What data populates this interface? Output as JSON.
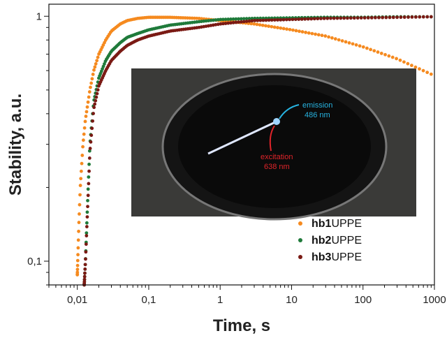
{
  "chart_data": {
    "type": "scatter",
    "xlabel": "Time, s",
    "ylabel": "Stability, a.u.",
    "xscale": "log",
    "yscale": "log",
    "xlim": [
      0.004,
      1000
    ],
    "ylim": [
      0.08,
      1.12
    ],
    "x_ticks": [
      {
        "value": 0.01,
        "label": "0,01"
      },
      {
        "value": 0.1,
        "label": "0,1"
      },
      {
        "value": 1,
        "label": "1"
      },
      {
        "value": 10,
        "label": "10"
      },
      {
        "value": 100,
        "label": "100"
      },
      {
        "value": 1000,
        "label": "1000"
      }
    ],
    "y_ticks": [
      {
        "value": 0.1,
        "label": "0,1"
      },
      {
        "value": 1,
        "label": "1"
      }
    ],
    "legend_position": "bottom-right",
    "series": [
      {
        "name": "hb1UPPE",
        "name_bold": "hb1",
        "name_rest": "UPPE",
        "color": "#f58a1f",
        "x": [
          0.01,
          0.0105,
          0.011,
          0.012,
          0.013,
          0.015,
          0.017,
          0.02,
          0.025,
          0.03,
          0.04,
          0.05,
          0.07,
          0.1,
          0.2,
          0.5,
          1,
          3,
          10,
          30,
          100,
          300,
          900
        ],
        "y": [
          0.088,
          0.14,
          0.2,
          0.3,
          0.38,
          0.5,
          0.6,
          0.7,
          0.8,
          0.87,
          0.93,
          0.96,
          0.98,
          0.99,
          0.99,
          0.98,
          0.96,
          0.93,
          0.88,
          0.83,
          0.75,
          0.67,
          0.58
        ]
      },
      {
        "name": "hb2UPPE",
        "name_bold": "hb2",
        "name_rest": "UPPE",
        "color": "#1f7a3a",
        "x": [
          0.0125,
          0.013,
          0.014,
          0.015,
          0.017,
          0.02,
          0.025,
          0.03,
          0.04,
          0.05,
          0.07,
          0.1,
          0.2,
          0.5,
          1,
          3,
          10,
          30,
          100,
          300,
          900
        ],
        "y": [
          0.08,
          0.1,
          0.18,
          0.3,
          0.45,
          0.56,
          0.66,
          0.72,
          0.78,
          0.82,
          0.85,
          0.88,
          0.92,
          0.95,
          0.97,
          0.98,
          0.985,
          0.99,
          0.99,
          0.995,
          0.995
        ]
      },
      {
        "name": "hb3UPPE",
        "name_bold": "hb3",
        "name_rest": "UPPE",
        "color": "#7a1a14",
        "x": [
          0.0125,
          0.013,
          0.014,
          0.015,
          0.017,
          0.02,
          0.025,
          0.03,
          0.04,
          0.05,
          0.07,
          0.1,
          0.2,
          0.5,
          1,
          3,
          10,
          30,
          100,
          300,
          900
        ],
        "y": [
          0.08,
          0.1,
          0.17,
          0.28,
          0.42,
          0.52,
          0.6,
          0.66,
          0.72,
          0.76,
          0.8,
          0.83,
          0.87,
          0.9,
          0.93,
          0.96,
          0.97,
          0.98,
          0.985,
          0.99,
          0.995
        ]
      }
    ],
    "inset": {
      "emission_label": "emission",
      "emission_value": "486 nm",
      "excitation_label": "excitation",
      "excitation_value": "638 nm"
    }
  }
}
